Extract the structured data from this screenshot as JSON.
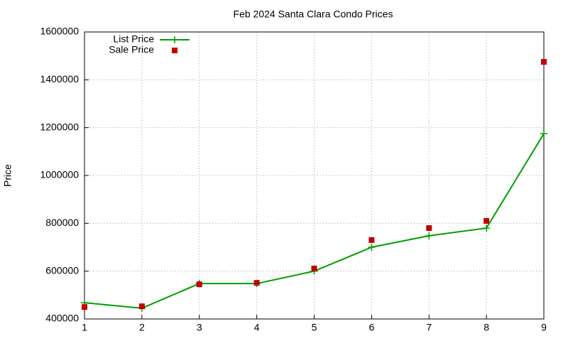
{
  "chart_data": {
    "type": "line",
    "title": "Feb 2024 Santa Clara Condo Prices",
    "y_label": "Price",
    "x": [
      1,
      2,
      3,
      4,
      5,
      6,
      7,
      8,
      9
    ],
    "series": [
      {
        "name": "List Price",
        "color": "#009e00",
        "style": "linespoints",
        "values": [
          468000,
          445000,
          548000,
          548000,
          600000,
          700000,
          748000,
          780000,
          1175000
        ]
      },
      {
        "name": "Sale Price",
        "color": "#c00000",
        "style": "points",
        "values": [
          450000,
          453000,
          545000,
          551000,
          611000,
          730000,
          780000,
          810000,
          1475000
        ]
      }
    ],
    "xlim": [
      1,
      9
    ],
    "xticks": [
      1,
      2,
      3,
      4,
      5,
      6,
      7,
      8,
      9
    ],
    "ylim": [
      400000,
      1600000
    ],
    "yticks": [
      400000,
      600000,
      800000,
      1000000,
      1200000,
      1400000,
      1600000
    ],
    "grid": true,
    "legend": "top-left"
  }
}
